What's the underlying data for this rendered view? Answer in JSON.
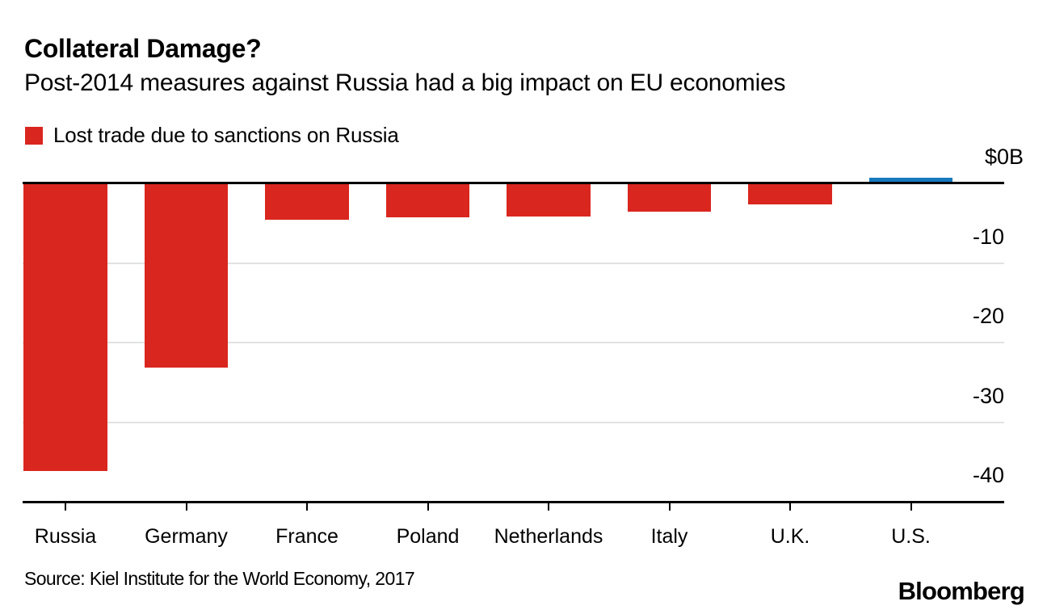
{
  "chart_data": {
    "type": "bar",
    "title": "Collateral Damage?",
    "subtitle": "Post-2014 measures against Russia had a big impact on EU economies",
    "legend_label": "Lost trade due to sanctions on Russia",
    "legend_position": "top-left",
    "categories": [
      "Russia",
      "Germany",
      "France",
      "Poland",
      "Netherlands",
      "Italy",
      "U.K.",
      "U.S."
    ],
    "values": [
      -36,
      -23,
      -4.5,
      -4.2,
      -4.1,
      -3.5,
      -2.5,
      0.5
    ],
    "series": [
      {
        "name": "Lost trade due to sanctions on Russia",
        "values": [
          -36,
          -23,
          -4.5,
          -4.2,
          -4.1,
          -3.5,
          -2.5,
          0.5
        ]
      }
    ],
    "unit": "$B",
    "ylim": [
      -40,
      0
    ],
    "yticks": [
      {
        "v": 0,
        "label": "$0B"
      },
      {
        "v": -10,
        "label": "-10"
      },
      {
        "v": -20,
        "label": "-20"
      },
      {
        "v": -30,
        "label": "-30"
      },
      {
        "v": -40,
        "label": "-40"
      }
    ],
    "grid": "horizontal",
    "colors": {
      "negative": "#d9261f",
      "positive": "#1679bd",
      "gridline": "#e2e2e2",
      "axis": "#000000"
    }
  },
  "footer": {
    "source": "Source: Kiel Institute for the World Economy, 2017",
    "brand": "Bloomberg"
  }
}
